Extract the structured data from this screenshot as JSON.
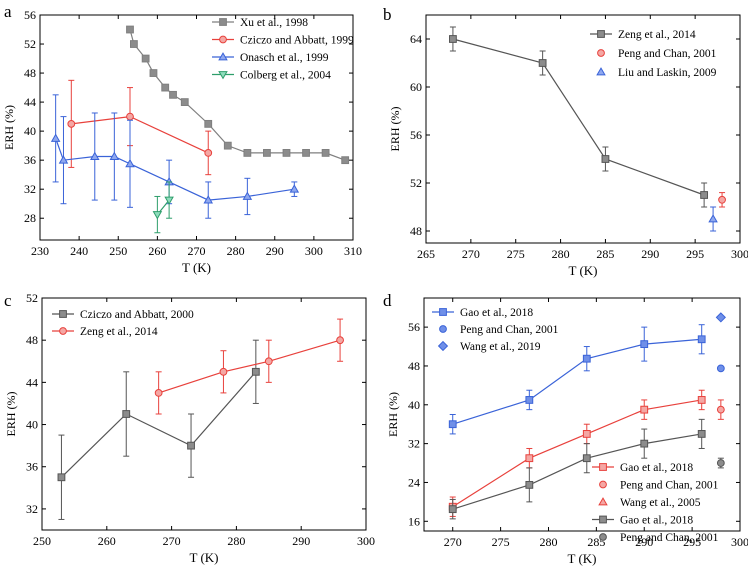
{
  "chart_data": [
    {
      "type": "line",
      "panel": "a",
      "xlabel": "T (K)",
      "ylabel": "ERH (%)",
      "xlim": [
        230,
        310
      ],
      "ylim": [
        25,
        56
      ],
      "xticks": [
        230,
        240,
        250,
        260,
        270,
        280,
        290,
        300,
        310
      ],
      "yticks": [
        28,
        32,
        36,
        40,
        44,
        48,
        52,
        56
      ],
      "legend_position": "top-right",
      "series": [
        {
          "name": "Xu et al., 1998",
          "marker": "square",
          "color": "#7f7f7f",
          "markerFill": "#8c8c8c",
          "line": true,
          "x": [
            253,
            254,
            257,
            259,
            262,
            264,
            267,
            273,
            278,
            283,
            288,
            293,
            298,
            303,
            308
          ],
          "y": [
            54,
            52,
            50,
            48,
            46,
            45,
            44,
            41,
            38,
            37,
            37,
            37,
            37,
            37,
            36
          ],
          "err": [
            0,
            0,
            0,
            0,
            0,
            0,
            0,
            0,
            0,
            0,
            0,
            0,
            0,
            0,
            0
          ]
        },
        {
          "name": "Cziczo and Abbatt, 1999",
          "marker": "circle",
          "color": "#e8413c",
          "markerFill": "#f4a7a4",
          "line": true,
          "x": [
            238,
            253,
            273
          ],
          "y": [
            41,
            42,
            37
          ],
          "err": [
            6,
            4,
            3
          ]
        },
        {
          "name": "Onasch et al., 1999",
          "marker": "triangle",
          "color": "#3a63d8",
          "markerFill": "#8fa8ef",
          "line": true,
          "x": [
            234,
            236,
            244,
            249,
            253,
            263,
            273,
            283,
            295
          ],
          "y": [
            39,
            36,
            36.5,
            36.5,
            35.5,
            33,
            30.5,
            31,
            32
          ],
          "err": [
            6,
            6,
            6,
            6,
            6,
            3,
            2.5,
            2.5,
            1
          ]
        },
        {
          "name": "Colberg et al., 2004",
          "marker": "triangle-down",
          "color": "#2e9e6b",
          "markerFill": "#8fdcbc",
          "line": true,
          "x": [
            260,
            263
          ],
          "y": [
            28.5,
            30.5
          ],
          "err": [
            2.5,
            2.5
          ]
        }
      ]
    },
    {
      "type": "line",
      "panel": "b",
      "xlabel": "T (K)",
      "ylabel": "ERH (%)",
      "xlim": [
        265,
        300
      ],
      "ylim": [
        47,
        66
      ],
      "xticks": [
        265,
        270,
        275,
        280,
        285,
        290,
        295,
        300
      ],
      "yticks": [
        48,
        52,
        56,
        60,
        64
      ],
      "legend_position": "top-right",
      "series": [
        {
          "name": "Zeng et al., 2014",
          "marker": "square",
          "color": "#555555",
          "markerFill": "#8c8c8c",
          "line": true,
          "x": [
            268,
            278,
            285,
            296
          ],
          "y": [
            64,
            62,
            54,
            51
          ],
          "err": [
            1,
            1,
            1,
            1
          ]
        },
        {
          "name": "Peng and Chan, 2001",
          "marker": "circle",
          "color": "#e8413c",
          "markerFill": "#f4a7a4",
          "line": false,
          "x": [
            298
          ],
          "y": [
            50.6
          ],
          "err": [
            0.6
          ]
        },
        {
          "name": "Liu and Laskin, 2009",
          "marker": "triangle",
          "color": "#3a63d8",
          "markerFill": "#8fa8ef",
          "line": false,
          "x": [
            297
          ],
          "y": [
            49
          ],
          "err": [
            1
          ]
        }
      ]
    },
    {
      "type": "line",
      "panel": "c",
      "xlabel": "T (K)",
      "ylabel": "ERH (%)",
      "xlim": [
        250,
        300
      ],
      "ylim": [
        30,
        52
      ],
      "xticks": [
        250,
        260,
        270,
        280,
        290,
        300
      ],
      "yticks": [
        32,
        36,
        40,
        44,
        48,
        52
      ],
      "legend_position": "top-left",
      "series": [
        {
          "name": "Cziczo and Abbatt, 2000",
          "marker": "square",
          "color": "#555555",
          "markerFill": "#8c8c8c",
          "line": true,
          "x": [
            253,
            263,
            273,
            283
          ],
          "y": [
            35,
            41,
            38,
            45
          ],
          "err": [
            4,
            4,
            3,
            3
          ]
        },
        {
          "name": "Zeng et al., 2014",
          "marker": "circle",
          "color": "#e8413c",
          "markerFill": "#f4a7a4",
          "line": true,
          "x": [
            268,
            278,
            285,
            296
          ],
          "y": [
            43,
            45,
            46,
            48
          ],
          "err": [
            2,
            2,
            2,
            2
          ]
        }
      ]
    },
    {
      "type": "line",
      "panel": "d",
      "xlabel": "T (K)",
      "ylabel": "ERH (%)",
      "xlim": [
        267,
        300
      ],
      "ylim": [
        14,
        62
      ],
      "xticks": [
        270,
        275,
        280,
        285,
        290,
        295,
        300
      ],
      "yticks": [
        16,
        24,
        32,
        40,
        48,
        56
      ],
      "legend_position": "top-left and bottom-right",
      "series": [
        {
          "name": "Gao et al., 2018",
          "group": "top",
          "marker": "square",
          "color": "#3a63d8",
          "markerFill": "#6f8fe8",
          "line": true,
          "x": [
            270,
            278,
            284,
            290,
            296
          ],
          "y": [
            36,
            41,
            49.5,
            52.5,
            53.5
          ],
          "err": [
            2,
            2,
            2.5,
            3.5,
            3
          ]
        },
        {
          "name": "Peng and Chan, 2001",
          "group": "top",
          "marker": "circle",
          "color": "#3a63d8",
          "markerFill": "#6f8fe8",
          "line": false,
          "x": [
            298
          ],
          "y": [
            47.5
          ],
          "err": [
            0
          ]
        },
        {
          "name": "Wang et al., 2019",
          "group": "top",
          "marker": "diamond",
          "color": "#3a63d8",
          "markerFill": "#6f8fe8",
          "line": false,
          "x": [
            298
          ],
          "y": [
            58
          ],
          "err": [
            0
          ]
        },
        {
          "name": "Gao et al., 2018",
          "group": "middle",
          "marker": "square",
          "color": "#e8413c",
          "markerFill": "#f4a7a4",
          "line": true,
          "x": [
            270,
            278,
            284,
            290,
            296
          ],
          "y": [
            19,
            29,
            34,
            39,
            41
          ],
          "err": [
            2,
            2,
            2,
            2,
            2
          ]
        },
        {
          "name": "Peng and Chan, 2001",
          "group": "middle",
          "marker": "circle",
          "color": "#e8413c",
          "markerFill": "#f4a7a4",
          "line": false,
          "x": [
            298
          ],
          "y": [
            39
          ],
          "err": [
            2
          ]
        },
        {
          "name": "Wang et al., 2005",
          "group": "middle",
          "marker": "triangle",
          "color": "#e8413c",
          "markerFill": "#f4a7a4",
          "line": false,
          "x": [],
          "y": [],
          "err": []
        },
        {
          "name": "Gao et al., 2018",
          "group": "bottom",
          "marker": "square",
          "color": "#555555",
          "markerFill": "#8c8c8c",
          "line": true,
          "x": [
            270,
            278,
            284,
            290,
            296
          ],
          "y": [
            18.5,
            23.5,
            29,
            32,
            34
          ],
          "err": [
            2,
            3.5,
            3,
            3,
            3
          ]
        },
        {
          "name": "Peng and Chan, 2001",
          "group": "bottom",
          "marker": "circle",
          "color": "#555555",
          "markerFill": "#8c8c8c",
          "line": false,
          "x": [
            298
          ],
          "y": [
            28
          ],
          "err": [
            1
          ]
        }
      ]
    }
  ]
}
